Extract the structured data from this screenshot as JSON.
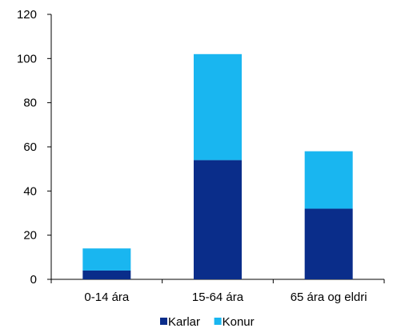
{
  "chart_data": {
    "type": "bar",
    "stacked": true,
    "categories": [
      "0-14 ára",
      "15-64 ára",
      "65 ára og eldri"
    ],
    "series": [
      {
        "name": "Karlar",
        "values": [
          4,
          54,
          32
        ],
        "color": "#0a2d8a"
      },
      {
        "name": "Konur",
        "values": [
          10,
          48,
          26
        ],
        "color": "#19b6f0"
      }
    ],
    "title": "",
    "xlabel": "",
    "ylabel": "",
    "ylim": [
      0,
      120
    ],
    "yticks": [
      0,
      20,
      40,
      60,
      80,
      100,
      120
    ],
    "grid": false,
    "legend_position": "bottom"
  }
}
